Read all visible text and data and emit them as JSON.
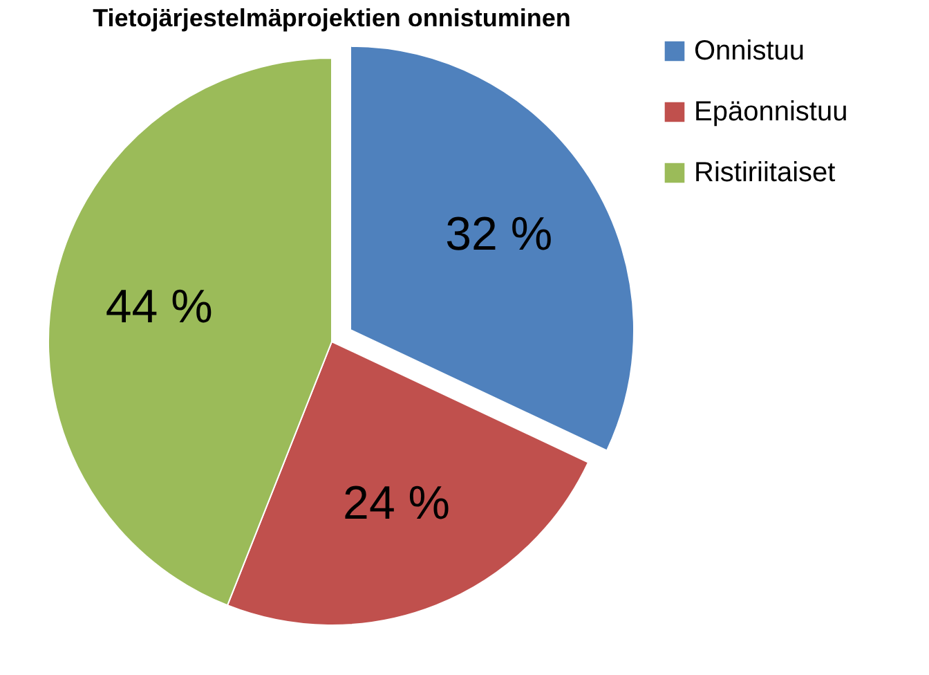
{
  "chart_data": {
    "type": "pie",
    "title": "Tietojärjestelmäprojektien onnistuminen",
    "categories": [
      "Onnistuu",
      "Epäonnistuu",
      "Ristiriitaiset"
    ],
    "values": [
      32,
      24,
      44
    ],
    "colors": [
      "#4f81bd",
      "#c0504d",
      "#9bbb59"
    ],
    "value_labels": [
      "32 %",
      "24 %",
      "44 %"
    ],
    "legend": "right"
  }
}
